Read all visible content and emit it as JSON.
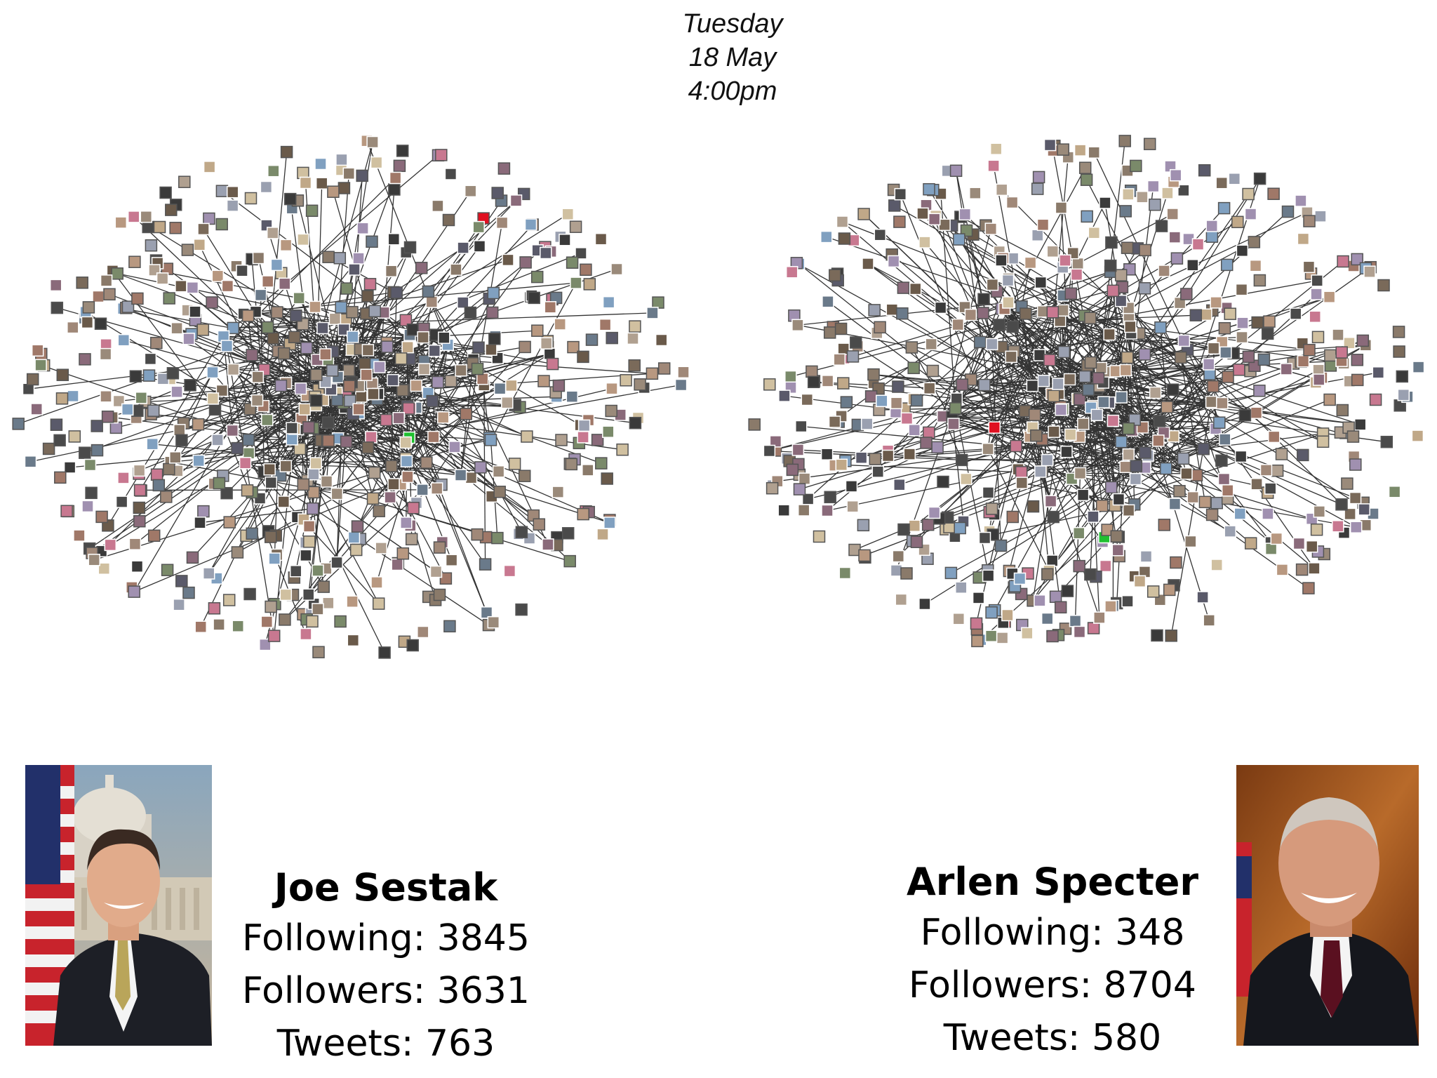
{
  "timestamp": {
    "day": "Tuesday",
    "date": "18 May",
    "time": "4:00pm"
  },
  "candidates": [
    {
      "name": "Joe Sestak",
      "following": "Following: 3845",
      "followers": "Followers: 3631",
      "tweets": "Tweets: 763"
    },
    {
      "name": "Arlen Specter",
      "following": "Following: 348",
      "followers": "Followers: 8704",
      "tweets": "Tweets: 580"
    }
  ],
  "colors": {
    "background": "#ffffff",
    "edge": "#111111",
    "node_border": "#555555",
    "highlight_red": "#e01020",
    "highlight_green": "#20c030"
  },
  "icons": {
    "network_node": "avatar-thumbnail",
    "photo": "portrait-photo"
  }
}
